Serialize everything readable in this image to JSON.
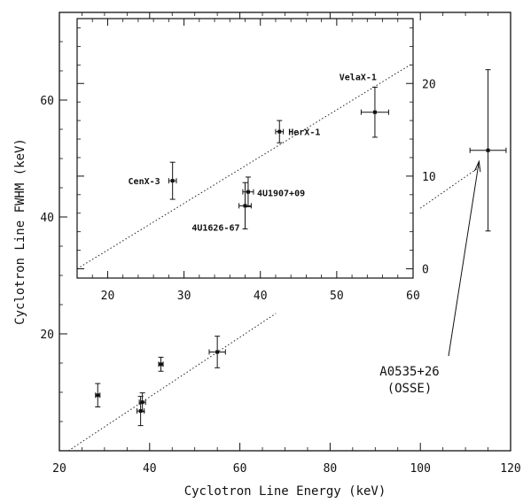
{
  "chart_data": [
    {
      "type": "scatter",
      "panel": "main",
      "xlabel": "Cyclotron Line Energy (keV)",
      "ylabel": "Cyclotron Line FWHM (keV)",
      "xlim": [
        20,
        120
      ],
      "ylim": [
        0,
        75
      ],
      "x_ticks": [
        20,
        40,
        60,
        80,
        100,
        120
      ],
      "y_ticks": [
        20,
        40,
        60
      ],
      "grid": false,
      "points": [
        {
          "x": 28.5,
          "y": 9.5,
          "xerr": 0.5,
          "yerr": 2
        },
        {
          "x": 38,
          "y": 6.8,
          "xerr": 0.8,
          "yerr": 2.5
        },
        {
          "x": 38.4,
          "y": 8.3,
          "xerr": 0.7,
          "yerr": 1.6
        },
        {
          "x": 42.5,
          "y": 14.8,
          "xerr": 0.5,
          "yerr": 1.2
        },
        {
          "x": 55,
          "y": 16.9,
          "xerr": 1.8,
          "yerr": 2.7
        },
        {
          "x": 115,
          "y": 51.4,
          "xerr": 4,
          "yerr": 13.8
        }
      ],
      "fit_line": {
        "x": [
          22,
          68
        ],
        "y": [
          0,
          23.5
        ]
      },
      "fit_line_extension": {
        "x": [
          100,
          113
        ],
        "y": [
          41.5,
          48.5
        ]
      },
      "annotation": {
        "lines": [
          "A0535+26",
          "(OSSE)"
        ],
        "target": {
          "x": 113,
          "y": 49.5
        }
      }
    },
    {
      "type": "scatter",
      "panel": "inset",
      "xlim": [
        16,
        60
      ],
      "ylim": [
        -1,
        27
      ],
      "x_ticks": [
        20,
        30,
        40,
        50,
        60
      ],
      "y_ticks": [
        0,
        10,
        20
      ],
      "grid": false,
      "points": [
        {
          "label": "CenX-3",
          "x": 28.5,
          "y": 9.5,
          "xerr": 0.5,
          "yerr": 2
        },
        {
          "label": "4U1626-67",
          "x": 38,
          "y": 6.8,
          "xerr": 0.8,
          "yerr": 2.5
        },
        {
          "label": "4U1907+09",
          "x": 38.4,
          "y": 8.3,
          "xerr": 0.7,
          "yerr": 1.6
        },
        {
          "label": "HerX-1",
          "x": 42.5,
          "y": 14.8,
          "xerr": 0.5,
          "yerr": 1.2
        },
        {
          "label": "VelaX-1",
          "x": 55,
          "y": 16.9,
          "xerr": 1.8,
          "yerr": 2.7
        }
      ],
      "fit_line": {
        "x": [
          16,
          60
        ],
        "y": [
          0,
          22.2
        ]
      }
    }
  ]
}
